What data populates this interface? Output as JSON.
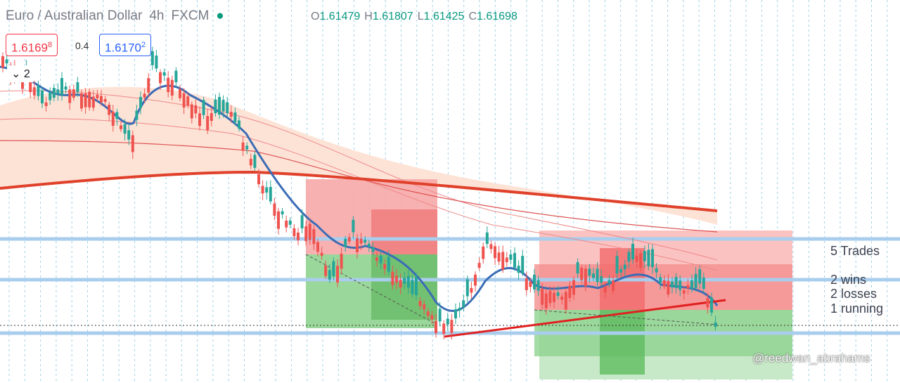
{
  "header": {
    "symbol": "Euro / Australian Dollar",
    "interval": "4h",
    "source": "FXCM",
    "ohlc": [
      {
        "label": "O",
        "value": "1.61479"
      },
      {
        "label": "H",
        "value": "1.61807"
      },
      {
        "label": "L",
        "value": "1.61425"
      },
      {
        "label": "C",
        "value": "1.61698"
      }
    ]
  },
  "quote": {
    "sell": {
      "price": "1.6169",
      "pip": "8"
    },
    "spread": "0.4",
    "buy": {
      "price": "1.6170",
      "pip": "2"
    }
  },
  "indicators_count": "2",
  "annotations": [
    "5 Trades",
    "2 wins",
    "2 losses",
    "1 running"
  ],
  "watermark": "@reedwan_abrahams"
}
